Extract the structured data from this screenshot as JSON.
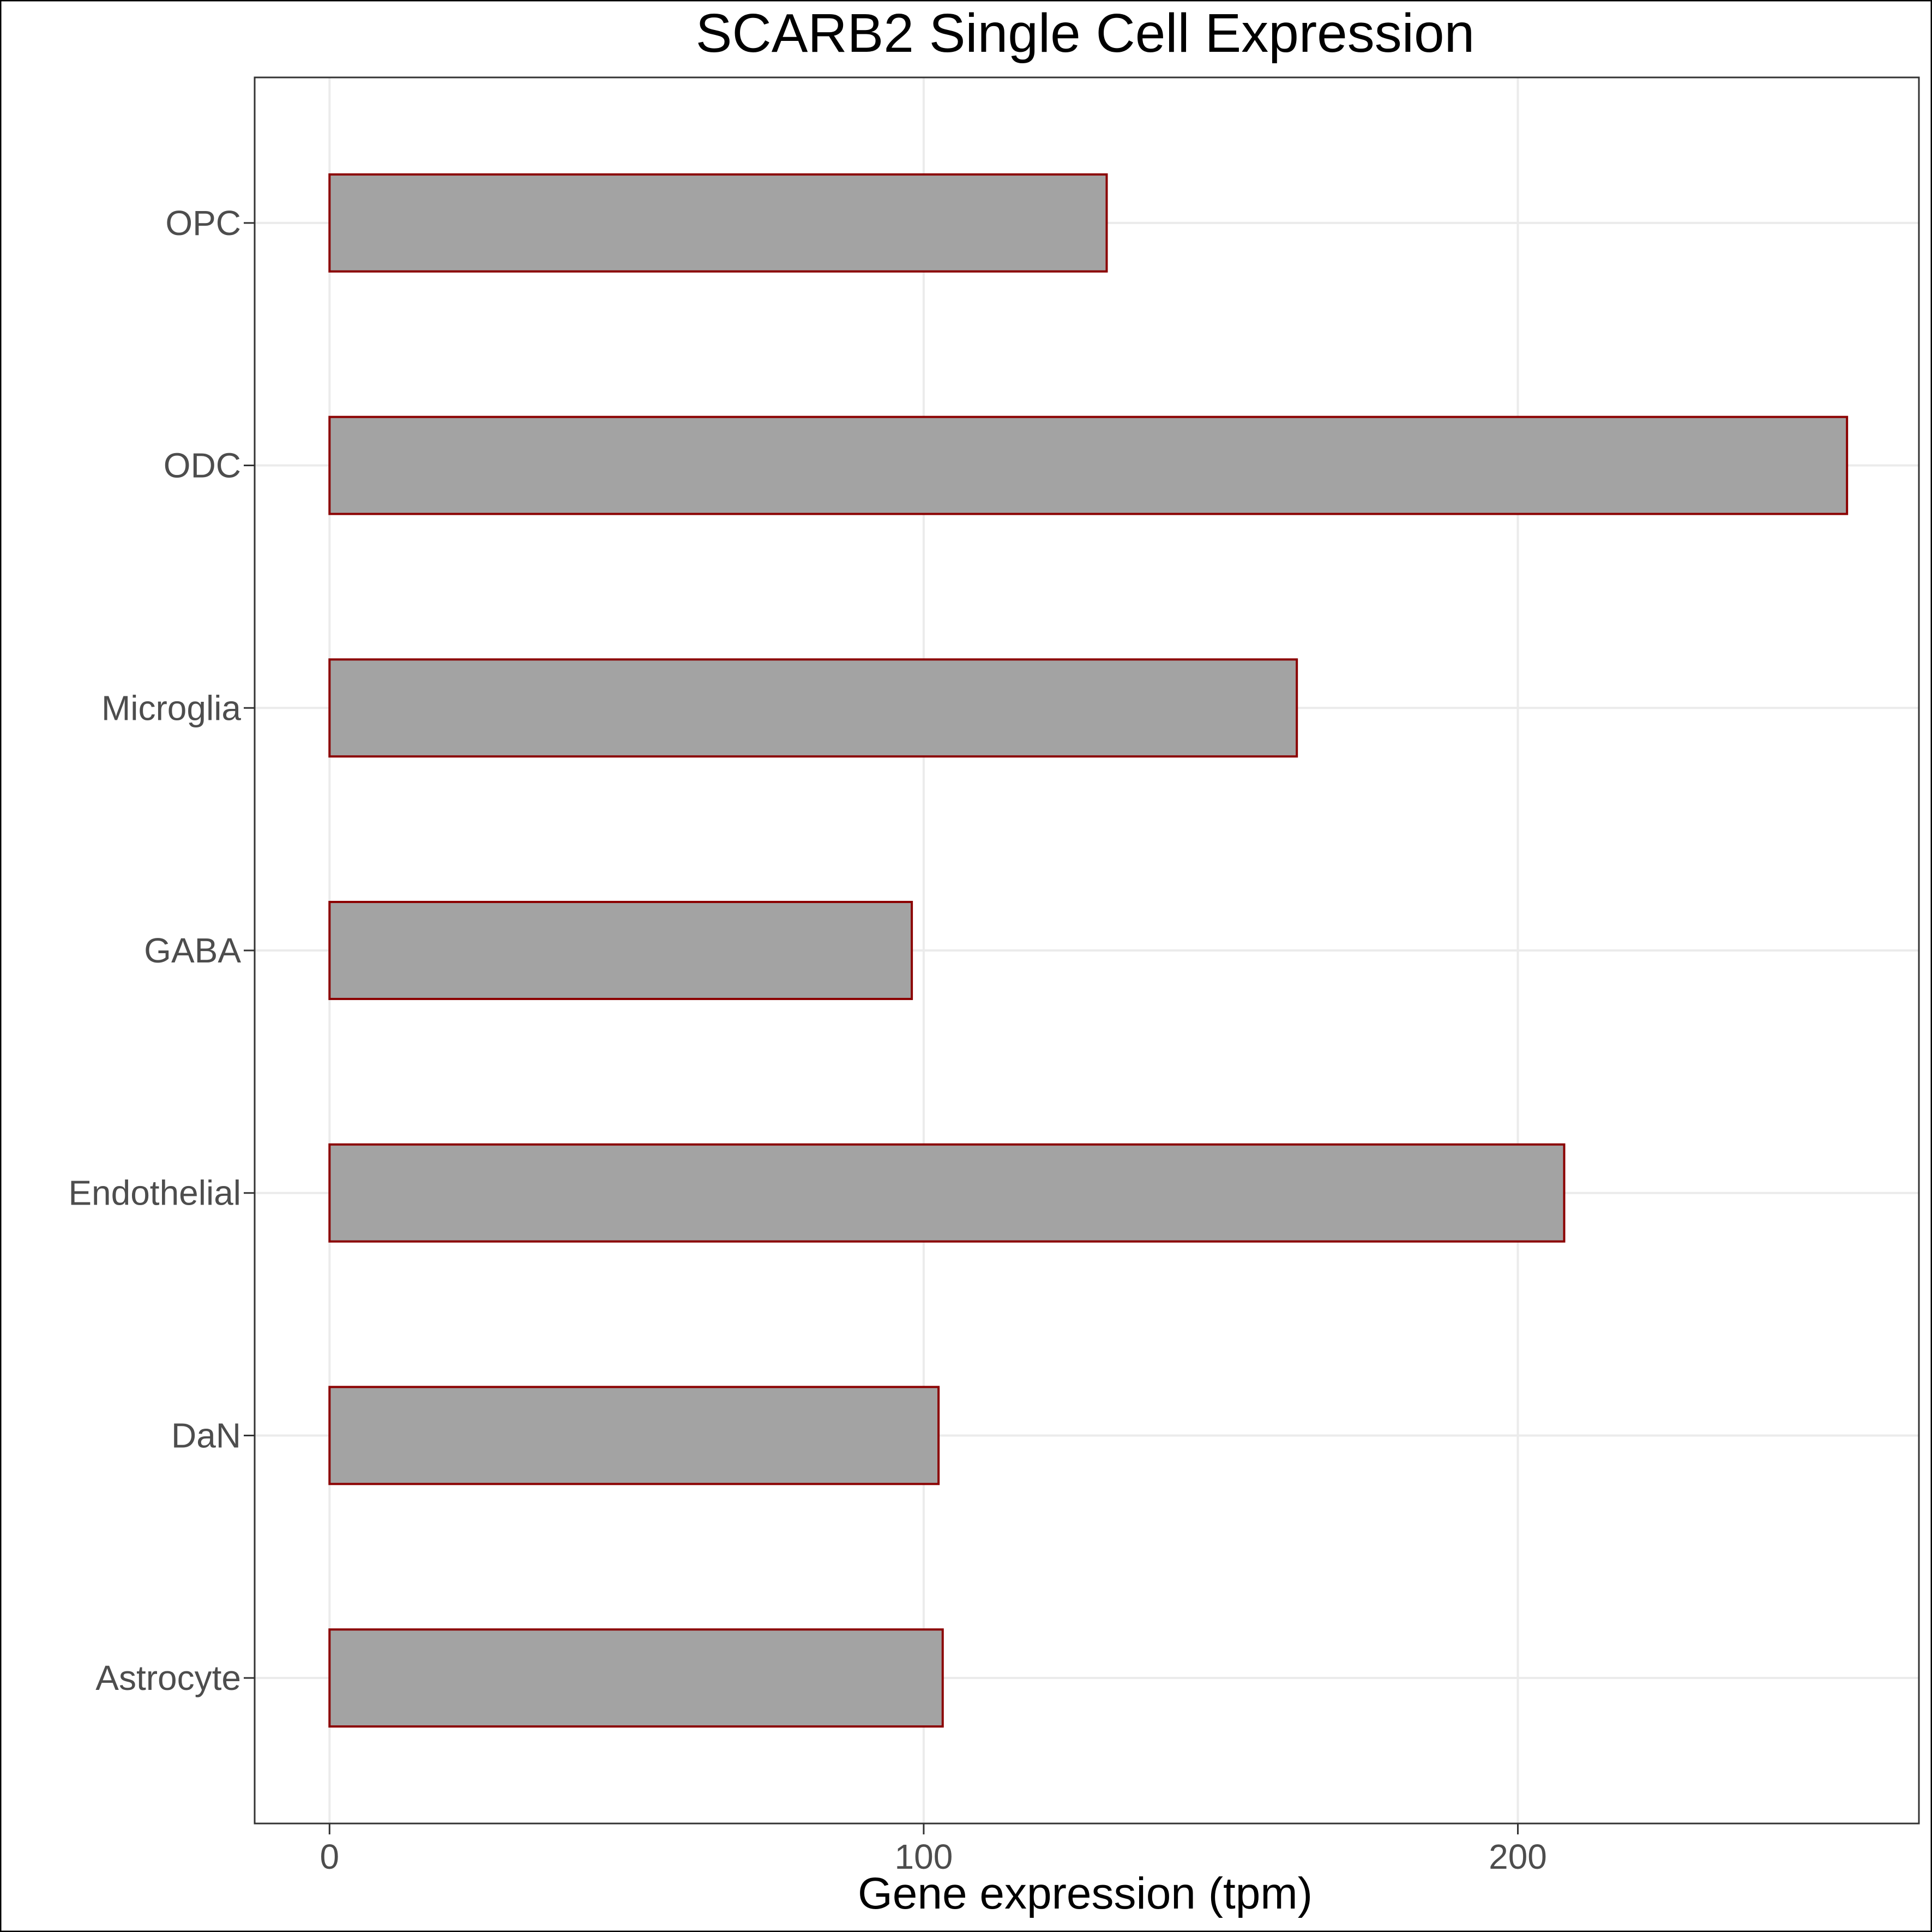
{
  "chart_data": {
    "type": "bar",
    "orientation": "horizontal",
    "title": "SCARB2 Single Cell Expression",
    "xlabel": "Gene expression (tpm)",
    "ylabel": "",
    "categories": [
      "Astrocyte",
      "DaN",
      "Endothelial",
      "GABA",
      "Microglia",
      "ODC",
      "OPC"
    ],
    "values": [
      103.2,
      102.5,
      207.8,
      98.0,
      162.8,
      255.4,
      130.8
    ],
    "xlim": [
      -12.6,
      267.5
    ],
    "xticks": [
      0,
      100,
      200
    ],
    "grid": true,
    "legend": "none",
    "colors": {
      "bar_fill": "#a3a3a3",
      "bar_stroke": "#8b0000",
      "grid": "#ebebeb",
      "panel_border": "#333333"
    }
  }
}
